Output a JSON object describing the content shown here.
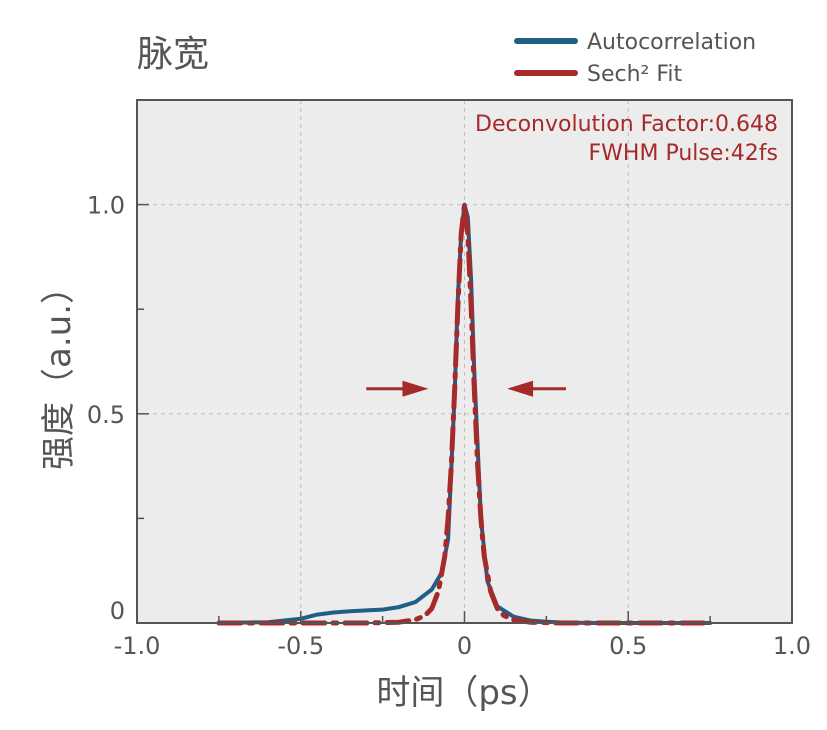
{
  "chart_data": {
    "type": "line",
    "title": "脉宽",
    "xlabel": "时间（ps）",
    "ylabel": "强度（a.u.）",
    "xlim": [
      -1.0,
      1.0
    ],
    "ylim": [
      0,
      1.25
    ],
    "x_ticks": [
      "-1.0",
      "-0.5",
      "0",
      "0.5",
      "1.0"
    ],
    "y_ticks": [
      "0",
      "0.5",
      "1.0"
    ],
    "grid": true,
    "legend_position": "top-right",
    "annotations": [
      "Deconvolution Factor:0.648",
      "FWHM Pulse:42fs"
    ],
    "colors": {
      "autocorrelation": "#1f5f85",
      "fit": "#a52a2a",
      "background": "#ececec"
    },
    "series": [
      {
        "name": "Autocorrelation",
        "x": [
          -0.75,
          -0.6,
          -0.5,
          -0.45,
          -0.4,
          -0.35,
          -0.3,
          -0.25,
          -0.2,
          -0.15,
          -0.1,
          -0.07,
          -0.05,
          -0.03,
          -0.02,
          -0.01,
          0.0,
          0.01,
          0.02,
          0.03,
          0.05,
          0.07,
          0.1,
          0.15,
          0.2,
          0.25,
          0.3,
          0.4,
          0.5,
          0.6,
          0.75
        ],
        "y": [
          0.0,
          0.002,
          0.01,
          0.02,
          0.025,
          0.028,
          0.03,
          0.032,
          0.038,
          0.05,
          0.08,
          0.12,
          0.2,
          0.55,
          0.78,
          0.93,
          1.0,
          0.97,
          0.82,
          0.6,
          0.25,
          0.1,
          0.04,
          0.015,
          0.006,
          0.003,
          0.001,
          0.0,
          0.0,
          0.0,
          0.0
        ]
      },
      {
        "name": "Sech² Fit",
        "x": [
          -0.75,
          -0.5,
          -0.3,
          -0.2,
          -0.15,
          -0.12,
          -0.1,
          -0.08,
          -0.06,
          -0.05,
          -0.04,
          -0.03,
          -0.02,
          -0.01,
          0.0,
          0.01,
          0.02,
          0.03,
          0.04,
          0.05,
          0.06,
          0.08,
          0.1,
          0.12,
          0.15,
          0.2,
          0.3,
          0.5,
          0.75
        ],
        "y": [
          0.0,
          0.0,
          0.0,
          0.002,
          0.008,
          0.018,
          0.035,
          0.075,
          0.16,
          0.25,
          0.38,
          0.56,
          0.76,
          0.93,
          1.0,
          0.93,
          0.76,
          0.56,
          0.38,
          0.25,
          0.16,
          0.075,
          0.035,
          0.018,
          0.008,
          0.002,
          0.0,
          0.0,
          0.0
        ]
      }
    ],
    "fwhm_arrows": {
      "y": 0.56,
      "left": [
        -0.3,
        -0.11
      ],
      "right": [
        0.31,
        0.13
      ]
    }
  }
}
